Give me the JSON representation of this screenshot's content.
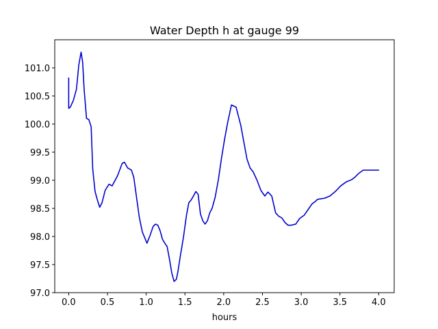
{
  "chart_data": {
    "type": "line",
    "title": "Water Depth h at gauge 99",
    "xlabel": "hours",
    "ylabel": "",
    "xlim": [
      -0.18,
      4.2
    ],
    "ylim": [
      97.0,
      101.5
    ],
    "xticks": [
      0.0,
      0.5,
      1.0,
      1.5,
      2.0,
      2.5,
      3.0,
      3.5,
      4.0
    ],
    "xtick_labels": [
      "0.0",
      "0.5",
      "1.0",
      "1.5",
      "2.0",
      "2.5",
      "3.0",
      "3.5",
      "4.0"
    ],
    "yticks": [
      97.0,
      97.5,
      98.0,
      98.5,
      99.0,
      99.5,
      100.0,
      100.5,
      101.0
    ],
    "ytick_labels": [
      "97.0",
      "97.5",
      "98.0",
      "98.5",
      "99.0",
      "99.5",
      "100.0",
      "100.5",
      "101.0"
    ],
    "grid": false,
    "series": [
      {
        "color": "#0000cc",
        "x": [
          0.0,
          0.0,
          0.02,
          0.06,
          0.1,
          0.13,
          0.16,
          0.18,
          0.2,
          0.23,
          0.26,
          0.29,
          0.31,
          0.34,
          0.37,
          0.4,
          0.43,
          0.47,
          0.52,
          0.56,
          0.63,
          0.69,
          0.72,
          0.76,
          0.81,
          0.84,
          0.87,
          0.91,
          0.95,
          1.01,
          1.05,
          1.09,
          1.12,
          1.15,
          1.18,
          1.21,
          1.24,
          1.27,
          1.3,
          1.33,
          1.36,
          1.39,
          1.41,
          1.44,
          1.48,
          1.52,
          1.55,
          1.58,
          1.61,
          1.64,
          1.67,
          1.7,
          1.73,
          1.76,
          1.79,
          1.82,
          1.85,
          1.89,
          1.93,
          1.97,
          2.01,
          2.05,
          2.1,
          2.16,
          2.22,
          2.26,
          2.3,
          2.34,
          2.38,
          2.43,
          2.48,
          2.53,
          2.57,
          2.62,
          2.67,
          2.71,
          2.75,
          2.79,
          2.83,
          2.87,
          2.93,
          2.98,
          3.04,
          3.09,
          3.14,
          3.18,
          3.21,
          3.25,
          3.3,
          3.37,
          3.44,
          3.51,
          3.58,
          3.65,
          3.69,
          3.74,
          3.8,
          3.86,
          3.91,
          3.96,
          4.0
        ],
        "y": [
          100.82,
          100.28,
          100.3,
          100.42,
          100.62,
          101.05,
          101.28,
          101.1,
          100.6,
          100.1,
          100.08,
          99.95,
          99.2,
          98.8,
          98.65,
          98.52,
          98.6,
          98.82,
          98.93,
          98.9,
          99.08,
          99.3,
          99.32,
          99.22,
          99.18,
          99.05,
          98.75,
          98.35,
          98.08,
          97.88,
          98.02,
          98.18,
          98.22,
          98.2,
          98.1,
          97.95,
          97.88,
          97.82,
          97.6,
          97.35,
          97.2,
          97.24,
          97.38,
          97.65,
          97.98,
          98.38,
          98.6,
          98.65,
          98.72,
          98.8,
          98.75,
          98.4,
          98.28,
          98.22,
          98.28,
          98.42,
          98.5,
          98.7,
          99.0,
          99.38,
          99.72,
          100.02,
          100.34,
          100.3,
          99.98,
          99.68,
          99.38,
          99.22,
          99.15,
          99.0,
          98.82,
          98.72,
          98.79,
          98.72,
          98.42,
          98.36,
          98.33,
          98.25,
          98.2,
          98.2,
          98.22,
          98.32,
          98.38,
          98.48,
          98.58,
          98.62,
          98.66,
          98.67,
          98.68,
          98.72,
          98.8,
          98.9,
          98.97,
          99.01,
          99.05,
          99.12,
          99.18,
          99.18,
          99.18,
          99.18,
          99.18
        ]
      }
    ]
  }
}
